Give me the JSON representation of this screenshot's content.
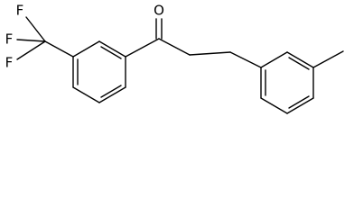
{
  "atoms": [
    {
      "label": "O"
    },
    {
      "label": "F"
    },
    {
      "label": "F"
    },
    {
      "label": "F"
    }
  ]
}
